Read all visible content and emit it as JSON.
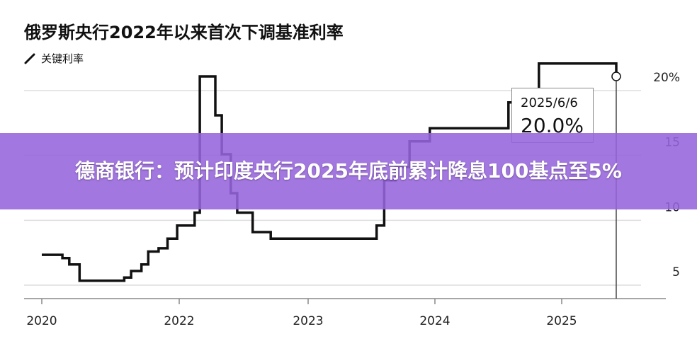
{
  "title": "俄罗斯央行2022年以来首次下调基准利率",
  "legend": {
    "label": "关键利率",
    "icon": "line-icon",
    "color": "#111111"
  },
  "banner": {
    "text": "德商银行：预计印度央行2025年底前累计降息100基点至5%",
    "color": "#9664dc"
  },
  "tooltip": {
    "date": "2025/6/6",
    "value": "20.0%"
  },
  "chart_data": {
    "type": "line",
    "title": "俄罗斯央行2022年以来首次下调基准利率",
    "xlabel": "",
    "ylabel": "",
    "x_ticks": [
      "2020",
      "2022",
      "2023",
      "2024",
      "2025"
    ],
    "y_ticks": [
      "20%",
      "15",
      "10",
      "5"
    ],
    "ylim": [
      3,
      21
    ],
    "xlim": [
      2019.85,
      2025.8
    ],
    "grid": true,
    "legend_position": "top-left",
    "series": [
      {
        "name": "关键利率",
        "points": [
          [
            2020.0,
            6.25
          ],
          [
            2020.3,
            6.0
          ],
          [
            2020.4,
            5.5
          ],
          [
            2020.55,
            4.25
          ],
          [
            2020.68,
            4.25
          ],
          [
            2021.2,
            4.5
          ],
          [
            2021.3,
            5.0
          ],
          [
            2021.45,
            5.5
          ],
          [
            2021.55,
            6.5
          ],
          [
            2021.7,
            6.75
          ],
          [
            2021.83,
            7.5
          ],
          [
            2021.97,
            8.5
          ],
          [
            2022.12,
            9.5
          ],
          [
            2022.16,
            20.0
          ],
          [
            2022.28,
            17.0
          ],
          [
            2022.33,
            14.0
          ],
          [
            2022.4,
            11.0
          ],
          [
            2022.45,
            9.5
          ],
          [
            2022.57,
            8.0
          ],
          [
            2022.71,
            7.5
          ],
          [
            2023.32,
            7.5
          ],
          [
            2023.54,
            8.5
          ],
          [
            2023.6,
            12.0
          ],
          [
            2023.69,
            13.0
          ],
          [
            2023.8,
            15.0
          ],
          [
            2023.96,
            16.0
          ],
          [
            2024.58,
            18.0
          ],
          [
            2024.82,
            21.0
          ],
          [
            2025.2,
            21.0
          ],
          [
            2025.43,
            20.0
          ]
        ]
      }
    ]
  }
}
